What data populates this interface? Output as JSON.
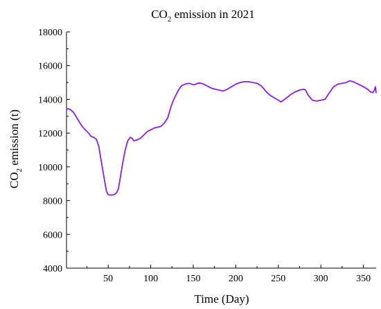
{
  "chart_data": {
    "type": "line",
    "title_main": "CO",
    "title_sub": "2",
    "title_rest": " emission in 2021",
    "xlabel": "Time (Day)",
    "ylabel_main": "CO",
    "ylabel_sub": "2",
    "ylabel_rest": " emission (t)",
    "xlim": [
      1,
      365
    ],
    "ylim": [
      4000,
      18000
    ],
    "xticks": [
      50,
      100,
      150,
      200,
      250,
      300,
      350
    ],
    "xtick_labels": [
      "50",
      "100",
      "150",
      "200",
      "250",
      "300",
      "350"
    ],
    "yticks": [
      4000,
      6000,
      8000,
      10000,
      12000,
      14000,
      16000,
      18000
    ],
    "ytick_labels": [
      "4000",
      "6000",
      "8000",
      "10000",
      "12000",
      "14000",
      "16000",
      "18000"
    ],
    "grid": false,
    "series": [
      {
        "line_color": "#8b1cf2",
        "x": [
          1,
          3,
          6,
          9,
          12,
          15,
          18,
          21,
          24,
          27,
          30,
          33,
          36,
          39,
          42,
          44,
          46,
          48,
          50,
          52,
          55,
          58,
          60,
          62,
          64,
          67,
          70,
          73,
          76,
          78,
          80,
          84,
          88,
          92,
          96,
          100,
          104,
          108,
          112,
          116,
          120,
          124,
          128,
          132,
          136,
          140,
          145,
          150,
          153,
          156,
          159,
          161,
          164,
          168,
          172,
          176,
          180,
          185,
          190,
          195,
          200,
          205,
          210,
          215,
          220,
          225,
          230,
          235,
          240,
          245,
          250,
          253,
          256,
          260,
          265,
          270,
          275,
          280,
          282,
          285,
          290,
          295,
          300,
          305,
          310,
          315,
          320,
          325,
          330,
          334,
          338,
          342,
          346,
          350,
          355,
          358,
          361,
          363,
          364,
          365
        ],
        "y": [
          13400,
          13450,
          13380,
          13250,
          13000,
          12750,
          12500,
          12300,
          12150,
          12000,
          11800,
          11750,
          11650,
          11200,
          10300,
          9700,
          9100,
          8550,
          8350,
          8330,
          8330,
          8380,
          8480,
          8700,
          9300,
          10200,
          11000,
          11550,
          11750,
          11700,
          11550,
          11600,
          11700,
          11900,
          12100,
          12200,
          12300,
          12350,
          12400,
          12600,
          12900,
          13600,
          14100,
          14500,
          14800,
          14900,
          14950,
          14870,
          14900,
          14970,
          14950,
          14930,
          14850,
          14750,
          14650,
          14600,
          14550,
          14500,
          14600,
          14750,
          14900,
          15000,
          15050,
          15050,
          15000,
          14950,
          14800,
          14500,
          14250,
          14100,
          13950,
          13850,
          13950,
          14100,
          14300,
          14450,
          14550,
          14600,
          14550,
          14250,
          13950,
          13900,
          13950,
          14000,
          14400,
          14750,
          14900,
          14950,
          15000,
          15100,
          15050,
          14950,
          14850,
          14750,
          14600,
          14450,
          14400,
          14550,
          14750,
          14400
        ]
      }
    ]
  }
}
